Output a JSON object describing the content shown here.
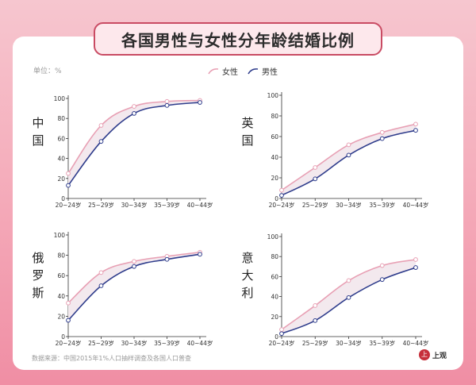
{
  "title": "各国男性与女性分年龄结婚比例",
  "unit_label": "单位：%",
  "legend": {
    "female": "女性",
    "male": "男性"
  },
  "source": "数据来源：中国2015年1%人口抽样调查及各国人口普查",
  "logo": {
    "mark": "上",
    "text": "上观"
  },
  "colors": {
    "female": "#e8a0b4",
    "male": "#2f3d8c",
    "fill": "#f3e9ee"
  },
  "chart_data": [
    {
      "type": "line",
      "country": "中国",
      "categories": [
        "20~24岁",
        "25~29岁",
        "30~34岁",
        "35~39岁",
        "40~44岁"
      ],
      "ylim": [
        0,
        100
      ],
      "yticks": [
        0,
        20,
        40,
        60,
        80,
        100
      ],
      "series": [
        {
          "name": "女性",
          "values": [
            25,
            73,
            92,
            97,
            98
          ]
        },
        {
          "name": "男性",
          "values": [
            13,
            57,
            85,
            93,
            96
          ]
        }
      ]
    },
    {
      "type": "line",
      "country": "英国",
      "categories": [
        "20~24岁",
        "25~29岁",
        "30~34岁",
        "35~39岁",
        "40~44岁"
      ],
      "ylim": [
        0,
        100
      ],
      "yticks": [
        0,
        20,
        40,
        60,
        80,
        100
      ],
      "series": [
        {
          "name": "女性",
          "values": [
            8,
            30,
            52,
            64,
            72
          ]
        },
        {
          "name": "男性",
          "values": [
            3,
            19,
            42,
            58,
            66
          ]
        }
      ]
    },
    {
      "type": "line",
      "country": "俄罗斯",
      "categories": [
        "20~24岁",
        "25~29岁",
        "30~34岁",
        "35~39岁",
        "40~44岁"
      ],
      "ylim": [
        0,
        100
      ],
      "yticks": [
        0,
        20,
        40,
        60,
        80,
        100
      ],
      "series": [
        {
          "name": "女性",
          "values": [
            33,
            63,
            74,
            79,
            83
          ]
        },
        {
          "name": "男性",
          "values": [
            16,
            50,
            69,
            76,
            81
          ]
        }
      ]
    },
    {
      "type": "line",
      "country": "意大利",
      "categories": [
        "20~24岁",
        "25~29岁",
        "30~34岁",
        "35~39岁",
        "40~44岁"
      ],
      "ylim": [
        0,
        100
      ],
      "yticks": [
        0,
        20,
        40,
        60,
        80,
        100
      ],
      "series": [
        {
          "name": "女性",
          "values": [
            7,
            31,
            56,
            71,
            77
          ]
        },
        {
          "name": "男性",
          "values": [
            3,
            16,
            39,
            57,
            69
          ]
        }
      ]
    }
  ]
}
